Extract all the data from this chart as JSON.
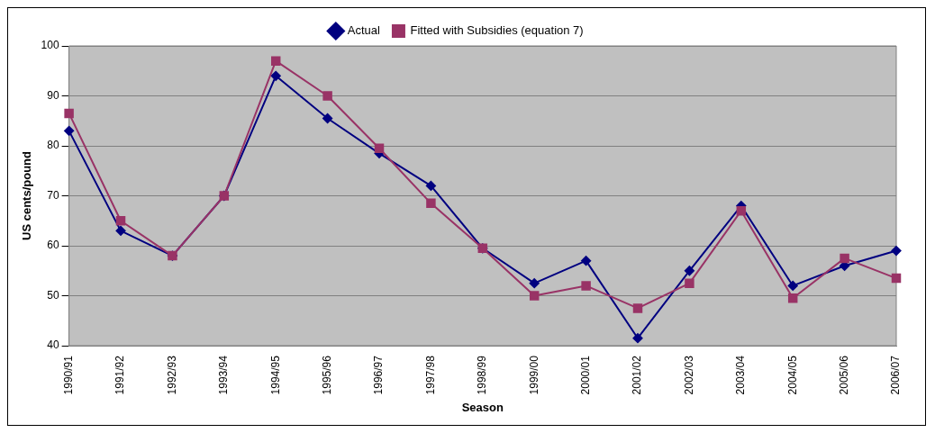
{
  "chart_data": {
    "type": "line",
    "xlabel": "Season",
    "ylabel": "US cents/pound",
    "categories": [
      "1990/91",
      "1991/92",
      "1992/93",
      "1993/94",
      "1994/95",
      "1995/96",
      "1996/97",
      "1997/98",
      "1998/99",
      "1999/00",
      "2000/01",
      "2001/02",
      "2002/03",
      "2003/04",
      "2004/05",
      "2005/06",
      "2006/07"
    ],
    "series": [
      {
        "name": "Actual",
        "color": "#000080",
        "marker": "diamond",
        "values": [
          83,
          63,
          58,
          70,
          94,
          85.5,
          78.5,
          72,
          59.5,
          52.5,
          57,
          41.5,
          55,
          68,
          52,
          56,
          59
        ]
      },
      {
        "name": "Fitted with Subsidies (equation 7)",
        "color": "#993366",
        "marker": "square",
        "values": [
          86.5,
          65,
          58,
          70,
          97,
          90,
          79.5,
          68.5,
          59.5,
          50,
          52,
          47.5,
          52.5,
          67,
          49.5,
          57.5,
          53.5
        ]
      }
    ],
    "ylim": [
      40,
      100
    ],
    "yticks": [
      40,
      50,
      60,
      70,
      80,
      90,
      100
    ],
    "grid": "y",
    "legend": "top",
    "line_style": "solid"
  }
}
